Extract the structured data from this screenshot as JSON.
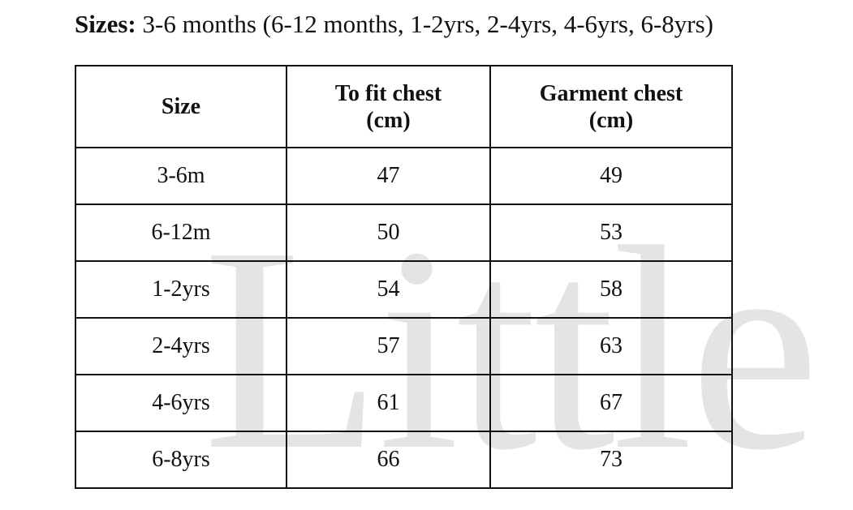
{
  "header": {
    "label": "Sizes:",
    "text": " 3-6 months (6-12 months, 1-2yrs, 2-4yrs, 4-6yrs, 6-8yrs)"
  },
  "watermark": "Little",
  "table": {
    "headers": [
      [
        "Size"
      ],
      [
        "To fit chest",
        "(cm)"
      ],
      [
        "Garment chest",
        "(cm)"
      ]
    ],
    "rows": [
      [
        "3-6m",
        "47",
        "49"
      ],
      [
        "6-12m",
        "50",
        "53"
      ],
      [
        "1-2yrs",
        "54",
        "58"
      ],
      [
        "2-4yrs",
        "57",
        "63"
      ],
      [
        "4-6yrs",
        "61",
        "67"
      ],
      [
        "6-8yrs",
        "66",
        "73"
      ]
    ]
  }
}
